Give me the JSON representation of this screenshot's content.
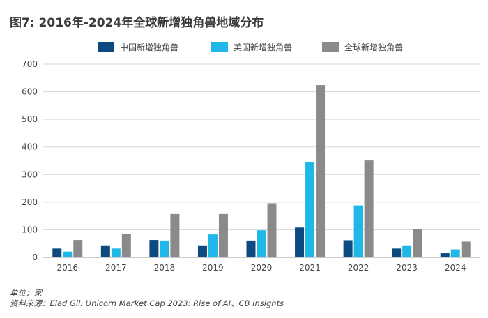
{
  "title": "图7: 2016年-2024年全球新增独角兽地域分布",
  "footer": {
    "unit": "单位：家",
    "source": "资料来源：Elad Gil: Unicorn Market Cap 2023: Rise of AI、CB Insights"
  },
  "chart_data": {
    "type": "bar",
    "categories": [
      "2016",
      "2017",
      "2018",
      "2019",
      "2020",
      "2021",
      "2022",
      "2023",
      "2024"
    ],
    "series": [
      {
        "name": "中国新增独角兽",
        "color": "#0d4a7f",
        "values": [
          32,
          41,
          63,
          41,
          61,
          108,
          62,
          32,
          15
        ]
      },
      {
        "name": "美国新增独角兽",
        "color": "#1fb6e8",
        "values": [
          21,
          32,
          61,
          83,
          98,
          344,
          188,
          41,
          29
        ]
      },
      {
        "name": "全球新增独角兽",
        "color": "#8a8a8a",
        "values": [
          63,
          86,
          157,
          157,
          196,
          624,
          351,
          103,
          57
        ]
      }
    ],
    "yticks": [
      "0",
      "100",
      "200",
      "300",
      "400",
      "500",
      "600",
      "700"
    ],
    "ylim": [
      0,
      700
    ],
    "grid": true,
    "legend_position": "top"
  }
}
